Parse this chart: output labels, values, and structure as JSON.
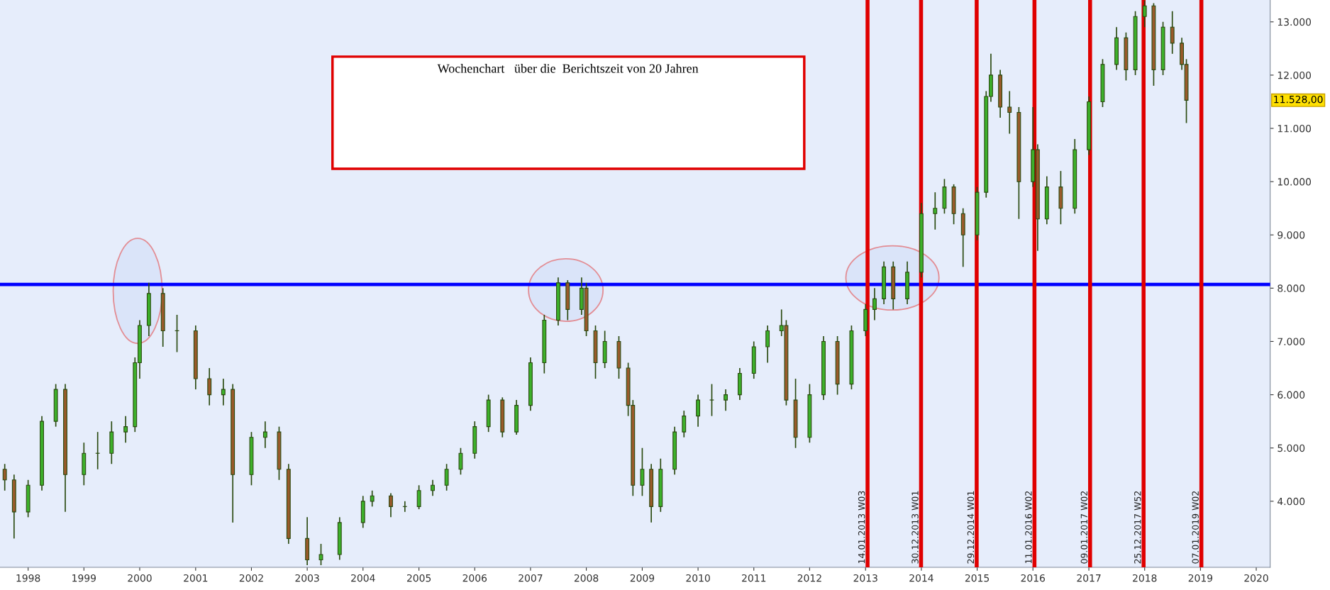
{
  "chart_data": {
    "type": "candlestick",
    "title": "Wochenchart   über die  Berichtszeit von 20 Jahren",
    "x": [
      "1997-08",
      "1997-10",
      "1998-01",
      "1998-04",
      "1998-07",
      "1998-09",
      "1999-01",
      "1999-04",
      "1999-07",
      "1999-10",
      "1999-12",
      "2000-01",
      "2000-03",
      "2000-06",
      "2000-09",
      "2001-01",
      "2001-04",
      "2001-07",
      "2001-09",
      "2002-01",
      "2002-04",
      "2002-07",
      "2002-09",
      "2003-01",
      "2003-04",
      "2003-08",
      "2004-01",
      "2004-03",
      "2004-07",
      "2004-10",
      "2005-01",
      "2005-04",
      "2005-07",
      "2005-10",
      "2006-01",
      "2006-04",
      "2006-07",
      "2006-10",
      "2007-01",
      "2007-04",
      "2007-07",
      "2007-09",
      "2007-12",
      "2008-01",
      "2008-03",
      "2008-05",
      "2008-08",
      "2008-10",
      "2008-11",
      "2009-01",
      "2009-03",
      "2009-05",
      "2009-08",
      "2009-10",
      "2010-01",
      "2010-04",
      "2010-07",
      "2010-10",
      "2011-01",
      "2011-04",
      "2011-07",
      "2011-08",
      "2011-10",
      "2012-01",
      "2012-04",
      "2012-07",
      "2012-10",
      "2013-01",
      "2013-03",
      "2013-05",
      "2013-07",
      "2013-10",
      "2014-01",
      "2014-04",
      "2014-06",
      "2014-08",
      "2014-10",
      "2015-01",
      "2015-03",
      "2015-04",
      "2015-06",
      "2015-08",
      "2015-10",
      "2016-01",
      "2016-02",
      "2016-04",
      "2016-07",
      "2016-10",
      "2017-01",
      "2017-04",
      "2017-07",
      "2017-09",
      "2017-11",
      "2018-01",
      "2018-03",
      "2018-05",
      "2018-07",
      "2018-09",
      "2018-10"
    ],
    "ohlc": [
      [
        4600,
        4700,
        4200,
        4400
      ],
      [
        4400,
        4500,
        3300,
        3800
      ],
      [
        3800,
        4400,
        3700,
        4300
      ],
      [
        4300,
        5600,
        4200,
        5500
      ],
      [
        5500,
        6200,
        5400,
        6100
      ],
      [
        6100,
        6200,
        3800,
        4500
      ],
      [
        4500,
        5100,
        4300,
        4900
      ],
      [
        4900,
        5300,
        4600,
        4900
      ],
      [
        4900,
        5500,
        4700,
        5300
      ],
      [
        5300,
        5600,
        5100,
        5400
      ],
      [
        5400,
        6700,
        5300,
        6600
      ],
      [
        6600,
        7400,
        6300,
        7300
      ],
      [
        7300,
        8100,
        7100,
        7900
      ],
      [
        7900,
        8000,
        6900,
        7200
      ],
      [
        7200,
        7500,
        6800,
        7200
      ],
      [
        7200,
        7300,
        6100,
        6300
      ],
      [
        6300,
        6500,
        5800,
        6000
      ],
      [
        6000,
        6300,
        5800,
        6100
      ],
      [
        6100,
        6200,
        3600,
        4500
      ],
      [
        4500,
        5300,
        4300,
        5200
      ],
      [
        5200,
        5500,
        5000,
        5300
      ],
      [
        5300,
        5400,
        4400,
        4600
      ],
      [
        4600,
        4700,
        3200,
        3300
      ],
      [
        3300,
        3700,
        2800,
        2900
      ],
      [
        2900,
        3200,
        2800,
        3000
      ],
      [
        3000,
        3700,
        2900,
        3600
      ],
      [
        3600,
        4100,
        3500,
        4000
      ],
      [
        4000,
        4200,
        3900,
        4100
      ],
      [
        4100,
        4150,
        3700,
        3900
      ],
      [
        3900,
        4000,
        3800,
        3900
      ],
      [
        3900,
        4300,
        3850,
        4200
      ],
      [
        4200,
        4400,
        4100,
        4300
      ],
      [
        4300,
        4700,
        4200,
        4600
      ],
      [
        4600,
        5000,
        4500,
        4900
      ],
      [
        4900,
        5500,
        4800,
        5400
      ],
      [
        5400,
        6000,
        5300,
        5900
      ],
      [
        5900,
        5950,
        5200,
        5300
      ],
      [
        5300,
        5900,
        5250,
        5800
      ],
      [
        5800,
        6700,
        5700,
        6600
      ],
      [
        6600,
        7500,
        6400,
        7400
      ],
      [
        7400,
        8200,
        7300,
        8100
      ],
      [
        8100,
        8150,
        7400,
        7600
      ],
      [
        7600,
        8200,
        7500,
        8000
      ],
      [
        8000,
        8100,
        7100,
        7200
      ],
      [
        7200,
        7300,
        6300,
        6600
      ],
      [
        6600,
        7200,
        6500,
        7000
      ],
      [
        7000,
        7100,
        6300,
        6500
      ],
      [
        6500,
        6600,
        5600,
        5800
      ],
      [
        5800,
        5900,
        4100,
        4300
      ],
      [
        4300,
        5000,
        4100,
        4600
      ],
      [
        4600,
        4700,
        3600,
        3900
      ],
      [
        3900,
        4800,
        3800,
        4600
      ],
      [
        4600,
        5400,
        4500,
        5300
      ],
      [
        5300,
        5700,
        5200,
        5600
      ],
      [
        5600,
        6000,
        5400,
        5900
      ],
      [
        5900,
        6200,
        5600,
        5900
      ],
      [
        5900,
        6100,
        5700,
        6000
      ],
      [
        6000,
        6500,
        5900,
        6400
      ],
      [
        6400,
        7000,
        6300,
        6900
      ],
      [
        6900,
        7300,
        6600,
        7200
      ],
      [
        7200,
        7600,
        7100,
        7300
      ],
      [
        7300,
        7400,
        5800,
        5900
      ],
      [
        5900,
        6300,
        5000,
        5200
      ],
      [
        5200,
        6200,
        5100,
        6000
      ],
      [
        6000,
        7100,
        5900,
        7000
      ],
      [
        7000,
        7100,
        6000,
        6200
      ],
      [
        6200,
        7300,
        6100,
        7200
      ],
      [
        7200,
        7700,
        7100,
        7600
      ],
      [
        7600,
        8000,
        7400,
        7800
      ],
      [
        7800,
        8500,
        7700,
        8400
      ],
      [
        8400,
        8500,
        7600,
        7800
      ],
      [
        7800,
        8500,
        7700,
        8300
      ],
      [
        8300,
        9600,
        8200,
        9400
      ],
      [
        9400,
        9800,
        9100,
        9500
      ],
      [
        9500,
        10050,
        9400,
        9900
      ],
      [
        9900,
        9950,
        9200,
        9400
      ],
      [
        9400,
        9500,
        8400,
        9000
      ],
      [
        9000,
        9900,
        8900,
        9800
      ],
      [
        9800,
        11700,
        9700,
        11600
      ],
      [
        11600,
        12400,
        11500,
        12000
      ],
      [
        12000,
        12100,
        11200,
        11400
      ],
      [
        11400,
        11700,
        10900,
        11300
      ],
      [
        11300,
        11400,
        9300,
        10000
      ],
      [
        10000,
        11400,
        9900,
        10600
      ],
      [
        10600,
        10700,
        8700,
        9300
      ],
      [
        9300,
        10100,
        9200,
        9900
      ],
      [
        9900,
        10200,
        9200,
        9500
      ],
      [
        9500,
        10800,
        9400,
        10600
      ],
      [
        10600,
        11600,
        10500,
        11500
      ],
      [
        11500,
        12300,
        11400,
        12200
      ],
      [
        12200,
        12900,
        12100,
        12700
      ],
      [
        12700,
        12800,
        11900,
        12100
      ],
      [
        12100,
        13200,
        12000,
        13100
      ],
      [
        13100,
        13400,
        12900,
        13300
      ],
      [
        13300,
        13350,
        11800,
        12100
      ],
      [
        12100,
        13000,
        12000,
        12900
      ],
      [
        12900,
        13200,
        12400,
        12600
      ],
      [
        12600,
        12700,
        12100,
        12200
      ],
      [
        12200,
        12300,
        11100,
        11528
      ]
    ],
    "xlim": [
      "1997-07-01",
      "2020-04-01"
    ],
    "xticks": [
      "1998",
      "1999",
      "2000",
      "2001",
      "2002",
      "2003",
      "2004",
      "2005",
      "2006",
      "2007",
      "2008",
      "2009",
      "2010",
      "2011",
      "2012",
      "2013",
      "2014",
      "2015",
      "2016",
      "2017",
      "2018",
      "2019",
      "2020"
    ],
    "ylim": [
      2760,
      13410
    ],
    "yticks": [
      {
        "value": 4000,
        "label": "4.000"
      },
      {
        "value": 5000,
        "label": "5.000"
      },
      {
        "value": 6000,
        "label": "6.000"
      },
      {
        "value": 7000,
        "label": "7.000"
      },
      {
        "value": 8000,
        "label": "8.000"
      },
      {
        "value": 9000,
        "label": "9.000"
      },
      {
        "value": 10000,
        "label": "10.000"
      },
      {
        "value": 11000,
        "label": "11.000"
      },
      {
        "value": 12000,
        "label": "12.000"
      },
      {
        "value": 13000,
        "label": "13.000"
      }
    ],
    "ref_lines": [
      {
        "axis": "y",
        "value": 8070,
        "color": "#0000ff"
      },
      {
        "axis": "x",
        "value": "2013-01-14",
        "label": "14.01.2013 W03",
        "color": "#e00000"
      },
      {
        "axis": "x",
        "value": "2013-12-30",
        "label": "30.12.2013 W01",
        "color": "#e00000"
      },
      {
        "axis": "x",
        "value": "2014-12-29",
        "label": "29.12.2014 W01",
        "color": "#e00000"
      },
      {
        "axis": "x",
        "value": "2016-01-11",
        "label": "11.01.2016 W02",
        "color": "#e00000"
      },
      {
        "axis": "x",
        "value": "2017-01-09",
        "label": "09.01.2017 W02",
        "color": "#e00000"
      },
      {
        "axis": "x",
        "value": "2017-12-25",
        "label": "25.12.2017 W52",
        "color": "#e00000"
      },
      {
        "axis": "x",
        "value": "2019-01-07",
        "label": "07.01.2019 W02",
        "color": "#e00000"
      }
    ],
    "annotations": [
      "11.528,00"
    ],
    "grid": false
  }
}
